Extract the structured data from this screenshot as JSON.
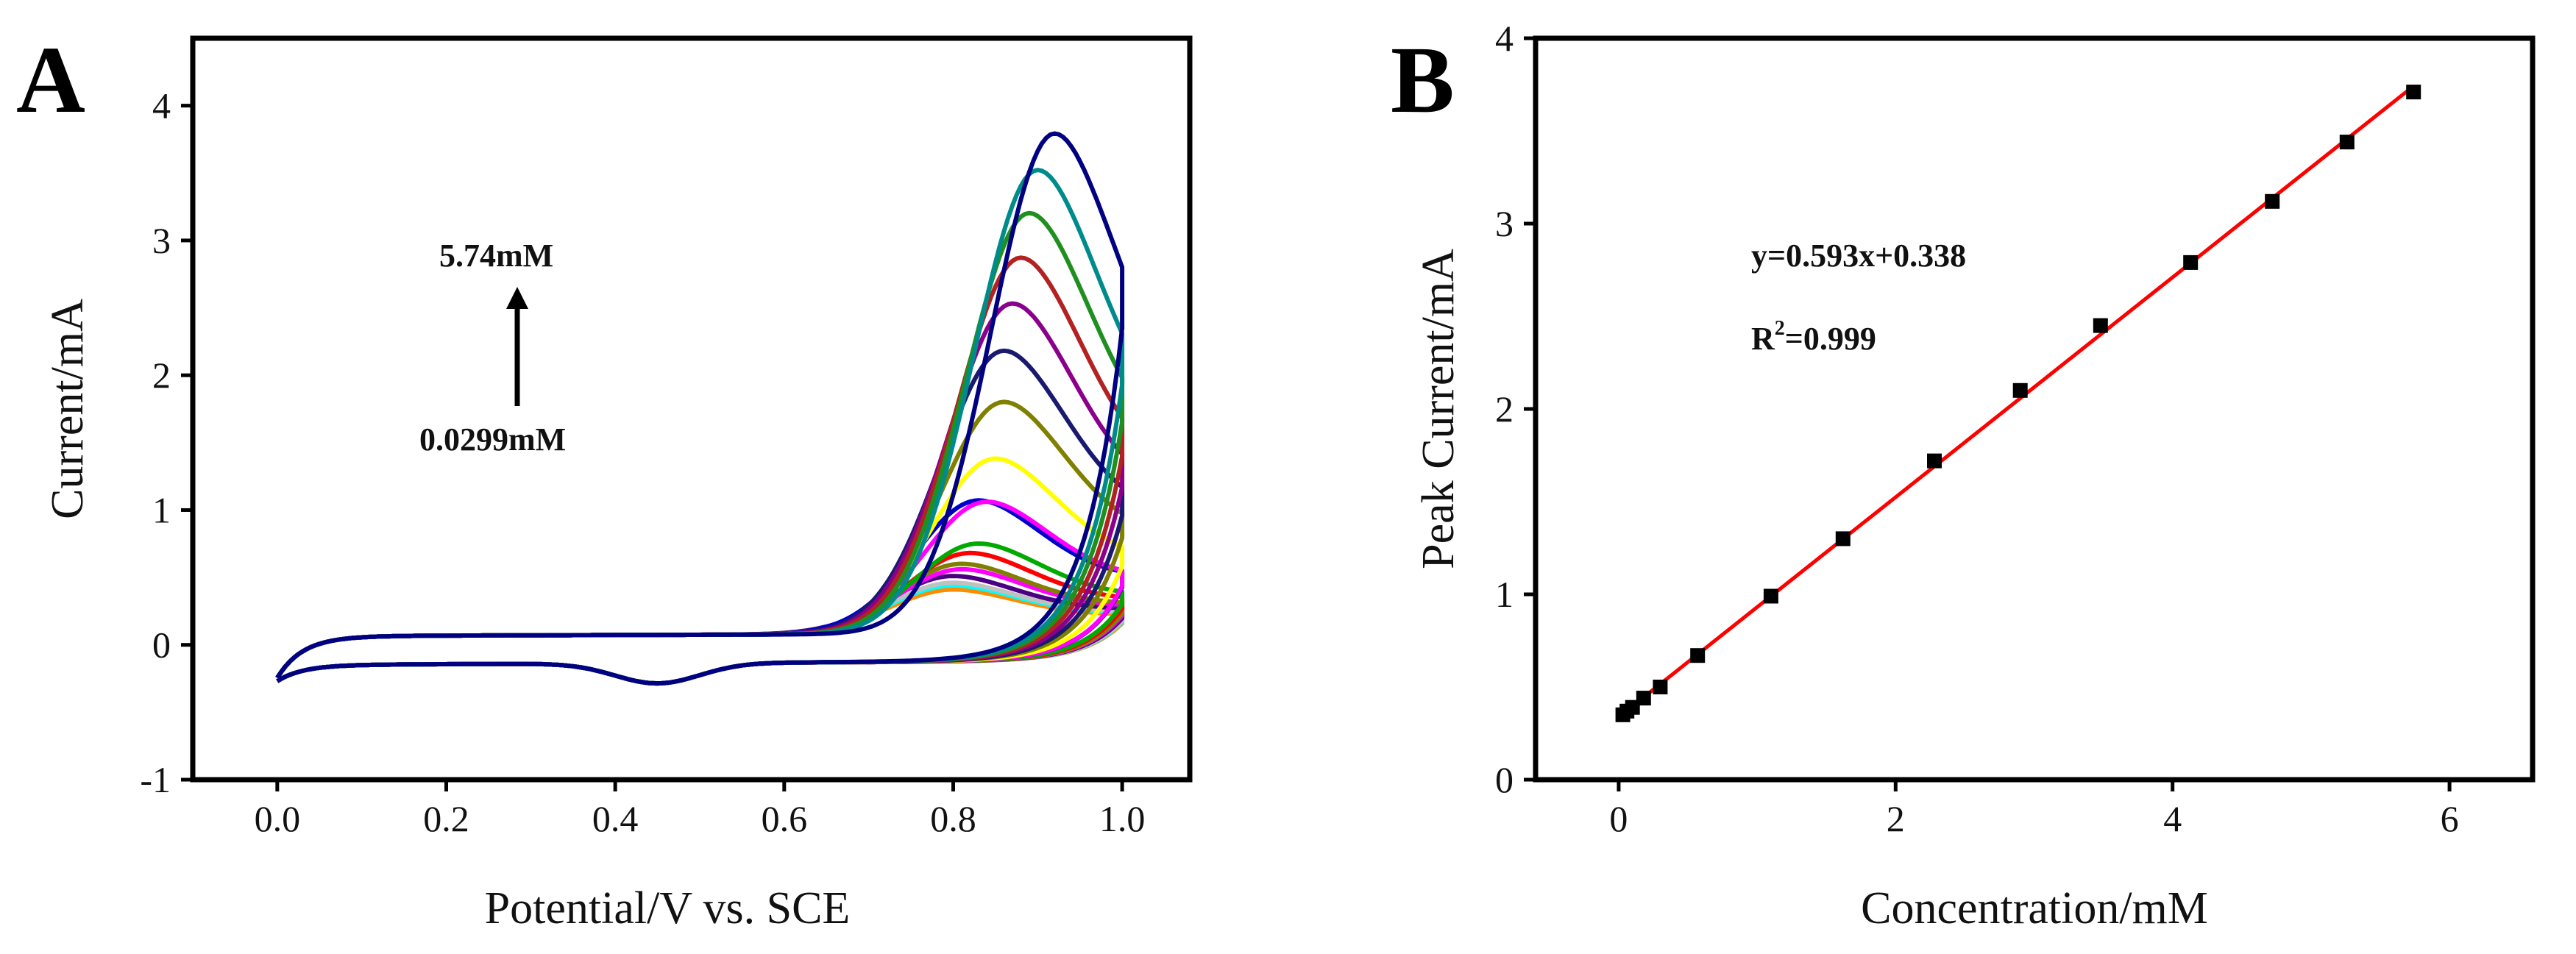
{
  "chart_data": [
    {
      "panel_label": "A",
      "type": "line",
      "xlabel": "Potential/V vs. SCE",
      "ylabel": "Current/mA",
      "xlim": [
        -0.1,
        1.08
      ],
      "ylim": [
        -1,
        4.5
      ],
      "x_ticks": [
        "0.0",
        "0.2",
        "0.4",
        "0.6",
        "0.8",
        "1.0"
      ],
      "y_ticks": [
        "-1",
        "0",
        "1",
        "2",
        "3",
        "4"
      ],
      "annotation_top": "5.74mM",
      "annotation_bottom": "0.0299mM",
      "series": [
        {
          "color": "#ff8c00",
          "peak_potential": 0.8,
          "peak_current": 0.33
        },
        {
          "color": "#00ffff",
          "peak_potential": 0.8,
          "peak_current": 0.36
        },
        {
          "color": "#c0c0c0",
          "peak_potential": 0.8,
          "peak_current": 0.38
        },
        {
          "color": "#4b0082",
          "peak_potential": 0.8,
          "peak_current": 0.43
        },
        {
          "color": "#ff00ff",
          "peak_potential": 0.81,
          "peak_current": 0.48
        },
        {
          "color": "#808000",
          "peak_potential": 0.81,
          "peak_current": 0.52
        },
        {
          "color": "#ff0000",
          "peak_potential": 0.82,
          "peak_current": 0.6
        },
        {
          "color": "#00aa00",
          "peak_potential": 0.83,
          "peak_current": 0.67
        },
        {
          "color": "#0000cd",
          "peak_potential": 0.83,
          "peak_current": 0.99
        },
        {
          "color": "#ff00ff",
          "peak_potential": 0.84,
          "peak_current": 0.98
        },
        {
          "color": "#ffff00",
          "peak_potential": 0.85,
          "peak_current": 1.3
        },
        {
          "color": "#808000",
          "peak_potential": 0.86,
          "peak_current": 1.72
        },
        {
          "color": "#191970",
          "peak_potential": 0.86,
          "peak_current": 2.1
        },
        {
          "color": "#8b008b",
          "peak_potential": 0.87,
          "peak_current": 2.45
        },
        {
          "color": "#b22222",
          "peak_potential": 0.88,
          "peak_current": 2.79
        },
        {
          "color": "#1f8f1f",
          "peak_potential": 0.89,
          "peak_current": 3.12
        },
        {
          "color": "#008b8b",
          "peak_potential": 0.9,
          "peak_current": 3.44
        },
        {
          "color": "#000080",
          "peak_potential": 0.92,
          "peak_current": 3.71
        }
      ]
    },
    {
      "panel_label": "B",
      "type": "scatter",
      "xlabel": "Concentration/mM",
      "ylabel": "Peak Current/mA",
      "xlim": [
        -0.6,
        6.6
      ],
      "ylim": [
        0,
        4
      ],
      "x_ticks": [
        "0",
        "2",
        "4",
        "6"
      ],
      "y_ticks": [
        "0",
        "1",
        "2",
        "3",
        "4"
      ],
      "points": [
        {
          "x": 0.03,
          "y": 0.35
        },
        {
          "x": 0.06,
          "y": 0.37
        },
        {
          "x": 0.1,
          "y": 0.39
        },
        {
          "x": 0.18,
          "y": 0.44
        },
        {
          "x": 0.3,
          "y": 0.5
        },
        {
          "x": 0.57,
          "y": 0.67
        },
        {
          "x": 1.1,
          "y": 0.99
        },
        {
          "x": 1.62,
          "y": 1.3
        },
        {
          "x": 2.28,
          "y": 1.72
        },
        {
          "x": 2.9,
          "y": 2.1
        },
        {
          "x": 3.48,
          "y": 2.45
        },
        {
          "x": 4.13,
          "y": 2.79
        },
        {
          "x": 4.72,
          "y": 3.12
        },
        {
          "x": 5.26,
          "y": 3.44
        },
        {
          "x": 5.74,
          "y": 3.71
        }
      ],
      "fit": {
        "slope": 0.593,
        "intercept": 0.338,
        "x_range": [
          0.0,
          5.74
        ],
        "color": "#ff0000"
      },
      "equation_text": "y=0.593x+0.338",
      "r2_prefix": "R",
      "r2_sup": "2",
      "r2_suffix": "=0.999"
    }
  ]
}
